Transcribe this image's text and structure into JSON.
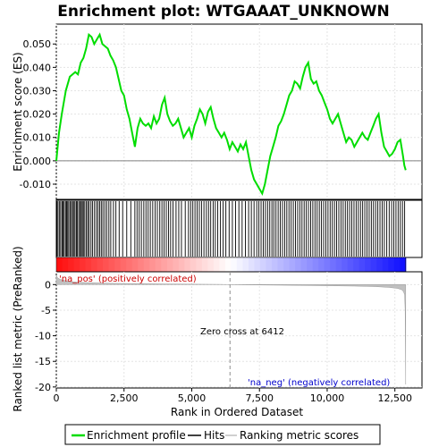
{
  "chart_data": {
    "type": "line",
    "title": "Enrichment plot: WTGAAAT_UNKNOWN",
    "top_panel": {
      "ylabel": "Enrichment score (ES)",
      "ylim": [
        -0.0165,
        0.0585
      ],
      "yticks": [
        -0.01,
        0.0,
        0.01,
        0.02,
        0.03,
        0.04,
        0.05
      ],
      "ytick_labels": [
        "-0.010",
        "0.000",
        "0.010",
        "0.020",
        "0.030",
        "0.040",
        "0.050"
      ],
      "series": [
        {
          "name": "Enrichment profile",
          "color": "#00dd00",
          "x": [
            0,
            100,
            200,
            350,
            500,
            700,
            800,
            900,
            1000,
            1100,
            1200,
            1300,
            1400,
            1500,
            1600,
            1700,
            1800,
            1900,
            2000,
            2100,
            2200,
            2300,
            2400,
            2500,
            2600,
            2700,
            2800,
            2900,
            3000,
            3100,
            3200,
            3300,
            3400,
            3500,
            3600,
            3700,
            3800,
            3900,
            4000,
            4100,
            4200,
            4300,
            4400,
            4500,
            4600,
            4700,
            4800,
            4900,
            5000,
            5100,
            5200,
            5300,
            5400,
            5500,
            5600,
            5700,
            5800,
            5900,
            6000,
            6100,
            6200,
            6300,
            6400,
            6500,
            6600,
            6700,
            6800,
            6900,
            7000,
            7100,
            7200,
            7300,
            7400,
            7500,
            7600,
            7700,
            7800,
            7900,
            8000,
            8100,
            8200,
            8300,
            8400,
            8500,
            8600,
            8700,
            8800,
            8900,
            9000,
            9100,
            9200,
            9300,
            9400,
            9500,
            9600,
            9700,
            9800,
            9900,
            10000,
            10100,
            10200,
            10300,
            10400,
            10500,
            10600,
            10700,
            10800,
            10900,
            11000,
            11100,
            11200,
            11300,
            11400,
            11500,
            11600,
            11700,
            11800,
            11900,
            12000,
            12100,
            12200,
            12300,
            12400,
            12500,
            12600,
            12700,
            12800,
            12850,
            12900
          ],
          "y": [
            0.0,
            0.012,
            0.02,
            0.03,
            0.036,
            0.038,
            0.037,
            0.042,
            0.044,
            0.048,
            0.054,
            0.053,
            0.05,
            0.052,
            0.054,
            0.05,
            0.049,
            0.048,
            0.045,
            0.043,
            0.04,
            0.035,
            0.03,
            0.028,
            0.022,
            0.018,
            0.012,
            0.006,
            0.014,
            0.018,
            0.016,
            0.015,
            0.016,
            0.014,
            0.019,
            0.016,
            0.018,
            0.024,
            0.027,
            0.02,
            0.017,
            0.015,
            0.016,
            0.018,
            0.014,
            0.01,
            0.012,
            0.014,
            0.01,
            0.015,
            0.018,
            0.022,
            0.02,
            0.016,
            0.021,
            0.023,
            0.018,
            0.014,
            0.012,
            0.01,
            0.012,
            0.009,
            0.005,
            0.008,
            0.006,
            0.004,
            0.007,
            0.005,
            0.008,
            0.002,
            -0.004,
            -0.008,
            -0.01,
            -0.012,
            -0.014,
            -0.01,
            -0.004,
            0.002,
            0.006,
            0.01,
            0.015,
            0.017,
            0.02,
            0.024,
            0.028,
            0.03,
            0.034,
            0.033,
            0.031,
            0.036,
            0.04,
            0.042,
            0.035,
            0.033,
            0.034,
            0.03,
            0.028,
            0.025,
            0.022,
            0.018,
            0.016,
            0.018,
            0.02,
            0.016,
            0.012,
            0.008,
            0.01,
            0.009,
            0.006,
            0.008,
            0.01,
            0.012,
            0.01,
            0.009,
            0.012,
            0.015,
            0.018,
            0.02,
            0.012,
            0.006,
            0.004,
            0.002,
            0.003,
            0.005,
            0.008,
            0.009,
            0.002,
            -0.002,
            -0.004
          ]
        }
      ]
    },
    "bottom_panel": {
      "ylabel": "Ranked list metric (PreRanked)",
      "xlabel": "Rank in Ordered Dataset",
      "xlim": [
        0,
        13500
      ],
      "ylim": [
        -20.2,
        2.5
      ],
      "xticks": [
        0,
        2500,
        5000,
        7500,
        10000,
        12500
      ],
      "xtick_labels": [
        "0",
        "2,500",
        "5,000",
        "7,500",
        "10,000",
        "12,500"
      ],
      "yticks": [
        0,
        -5,
        -10,
        -15,
        -20
      ],
      "ytick_labels": [
        "0",
        "-5",
        "-10",
        "-15",
        "-20"
      ],
      "metric": {
        "x": [
          0,
          50,
          150,
          300,
          500,
          800,
          1200,
          2000,
          3000,
          4000,
          5000,
          6000,
          6412,
          7000,
          8000,
          9000,
          10000,
          11000,
          11800,
          12300,
          12600,
          12750,
          12820,
          12860,
          12880,
          12900
        ],
        "y": [
          1.8,
          1.3,
          1.0,
          0.8,
          0.6,
          0.45,
          0.35,
          0.25,
          0.18,
          0.12,
          0.08,
          0.03,
          0.0,
          -0.05,
          -0.1,
          -0.15,
          -0.22,
          -0.3,
          -0.4,
          -0.55,
          -0.75,
          -1.0,
          -1.4,
          -2.0,
          -5.0,
          -19.5
        ]
      },
      "zero_cross_label": "Zero cross at 6412",
      "zero_cross": 6412,
      "pos_label": "'na_pos' (positively correlated)",
      "neg_label": "'na_neg' (negatively correlated)"
    },
    "hits": [
      20,
      60,
      110,
      160,
      210,
      250,
      290,
      340,
      380,
      420,
      460,
      510,
      560,
      600,
      650,
      690,
      740,
      780,
      830,
      880,
      920,
      960,
      1000,
      1050,
      1110,
      1160,
      1210,
      1280,
      1340,
      1410,
      1480,
      1540,
      1600,
      1660,
      1720,
      1790,
      1860,
      1940,
      2010,
      2110,
      2200,
      2320,
      2450,
      2600,
      2750,
      2900,
      2980,
      3060,
      3140,
      3230,
      3310,
      3390,
      3470,
      3560,
      3650,
      3730,
      3820,
      3900,
      3980,
      4060,
      4140,
      4220,
      4310,
      4420,
      4520,
      4620,
      4760,
      4880,
      4960,
      5040,
      5120,
      5200,
      5280,
      5360,
      5450,
      5540,
      5620,
      5700,
      5790,
      5870,
      5960,
      6060,
      6160,
      6260,
      6380,
      6500,
      6620,
      6740,
      6860,
      6980,
      7100,
      7200,
      7300,
      7400,
      7480,
      7560,
      7640,
      7720,
      7800,
      7880,
      7960,
      8030,
      8110,
      8190,
      8270,
      8350,
      8430,
      8510,
      8590,
      8670,
      8750,
      8830,
      8910,
      8990,
      9070,
      9150,
      9230,
      9310,
      9390,
      9470,
      9550,
      9630,
      9710,
      9790,
      9870,
      9950,
      10030,
      10110,
      10190,
      10270,
      10350,
      10430,
      10510,
      10590,
      10670,
      10750,
      10830,
      10910,
      10990,
      11070,
      11150,
      11230,
      11310,
      11390,
      11470,
      11550,
      11630,
      11710,
      11790,
      11870,
      11950,
      12030,
      12110,
      12200,
      12290,
      12380,
      12460,
      12540,
      12620,
      12700,
      12780,
      12860
    ],
    "legend": {
      "enrichment": "Enrichment profile",
      "hits": "Hits",
      "ranking": "Ranking metric scores"
    },
    "colors": {
      "profile": "#00dd00",
      "hits": "#000000",
      "metric_fill": "#c0c0c0",
      "zero_line": "#b0b0b0",
      "pos_text": "#cc0000",
      "neg_text": "#0000cc",
      "bar_pos": "#ff0000",
      "bar_neg": "#0000ff"
    }
  }
}
